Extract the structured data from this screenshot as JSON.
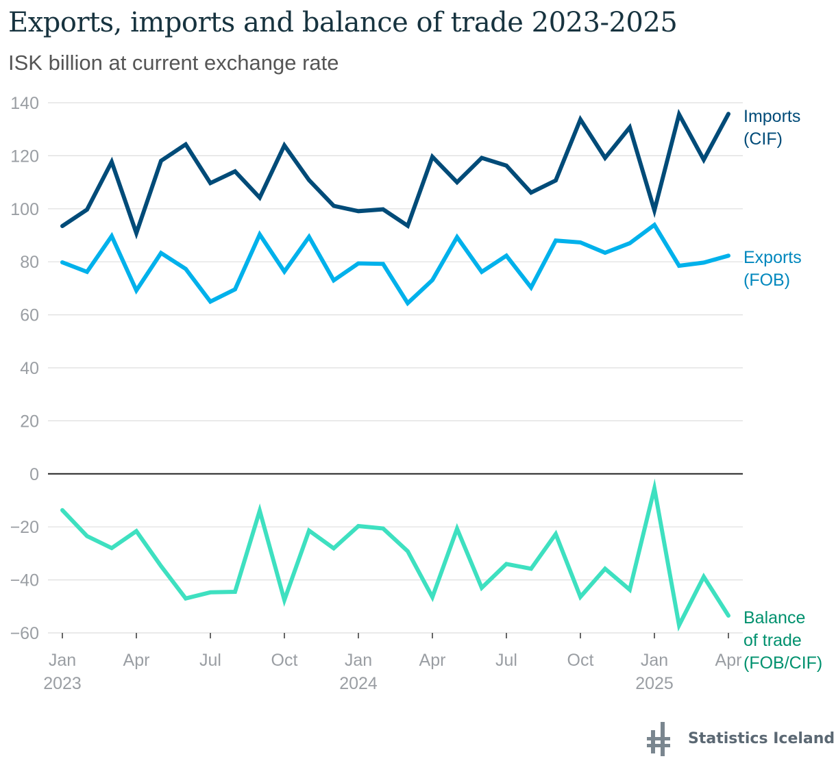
{
  "chart_data": {
    "type": "line",
    "title": "Exports, imports and balance of trade 2023-2025",
    "subtitle": "ISK billion at current exchange rate",
    "x": [
      "2023-01",
      "2023-02",
      "2023-03",
      "2023-04",
      "2023-05",
      "2023-06",
      "2023-07",
      "2023-08",
      "2023-09",
      "2023-10",
      "2023-11",
      "2023-12",
      "2024-01",
      "2024-02",
      "2024-03",
      "2024-04",
      "2024-05",
      "2024-06",
      "2024-07",
      "2024-08",
      "2024-09",
      "2024-10",
      "2024-11",
      "2024-12",
      "2025-01",
      "2025-02",
      "2025-03",
      "2025-04"
    ],
    "x_tick_labels": [
      {
        "x": "2023-01",
        "label": "Jan",
        "year": "2023"
      },
      {
        "x": "2023-04",
        "label": "Apr"
      },
      {
        "x": "2023-07",
        "label": "Jul"
      },
      {
        "x": "2023-10",
        "label": "Oct"
      },
      {
        "x": "2024-01",
        "label": "Jan",
        "year": "2024"
      },
      {
        "x": "2024-04",
        "label": "Apr"
      },
      {
        "x": "2024-07",
        "label": "Jul"
      },
      {
        "x": "2024-10",
        "label": "Oct"
      },
      {
        "x": "2025-01",
        "label": "Jan",
        "year": "2025"
      },
      {
        "x": "2025-04",
        "label": "Apr"
      }
    ],
    "y_ticks": [
      140,
      120,
      100,
      80,
      60,
      40,
      20,
      0,
      -20,
      -40,
      -60
    ],
    "y_tick_labels": [
      "140",
      "120",
      "100",
      "80",
      "60",
      "40",
      "20",
      "0",
      "−20",
      "−40",
      "−60"
    ],
    "ylim": [
      -60,
      140
    ],
    "grid": true,
    "legend": "direct labels at line ends (right)",
    "series": [
      {
        "name": "Imports (CIF)",
        "label_lines": [
          "Imports",
          "(CIF)"
        ],
        "color": "#004b78",
        "label_color": "#004b78",
        "values": [
          93.5,
          99.7,
          117.7,
          90.8,
          118.1,
          124.3,
          109.7,
          114.1,
          104.2,
          123.9,
          110.8,
          101.1,
          99.1,
          99.8,
          93.6,
          119.6,
          110,
          119.2,
          116.3,
          106.1,
          110.7,
          133.7,
          119.2,
          130.7,
          99.4,
          135.6,
          118.5,
          135.8
        ]
      },
      {
        "name": "Exports (FOB)",
        "label_lines": [
          "Exports",
          "(FOB)"
        ],
        "color": "#00b1eb",
        "label_color": "#0087bd",
        "values": [
          79.8,
          76.2,
          89.7,
          69.2,
          83.3,
          77.3,
          65,
          69.6,
          90.3,
          76.3,
          89.4,
          73,
          79.4,
          79.2,
          64.4,
          73.1,
          89.3,
          76.2,
          82.3,
          70.3,
          88,
          87.3,
          83.4,
          87,
          93.9,
          78.5,
          79.7,
          82.3
        ]
      },
      {
        "name": "Balance of trade (FOB/CIF)",
        "label_lines": [
          "Balance",
          "of trade",
          "(FOB/CIF)"
        ],
        "color": "#3ee0c0",
        "label_color": "#00916e",
        "values": [
          -13.7,
          -23.5,
          -28,
          -21.6,
          -34.8,
          -47,
          -44.7,
          -44.5,
          -13.9,
          -47.6,
          -21.4,
          -28.1,
          -19.7,
          -20.6,
          -29.2,
          -46.5,
          -20.7,
          -43,
          -34,
          -35.8,
          -22.7,
          -46.4,
          -35.8,
          -43.7,
          -5.5,
          -57.1,
          -38.8,
          -53.5
        ]
      }
    ]
  },
  "logo": {
    "text": "Statistics Iceland",
    "icon": "statistics-iceland-logo-icon"
  }
}
